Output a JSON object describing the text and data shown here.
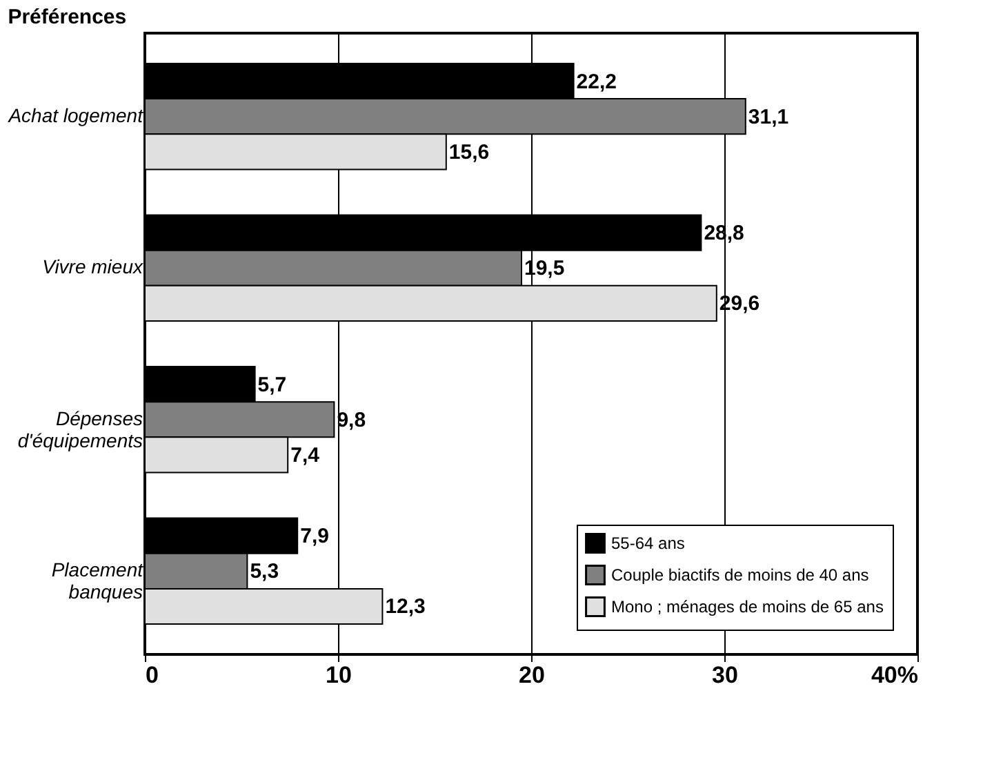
{
  "chart_data": {
    "type": "bar",
    "orientation": "horizontal",
    "title": "Préférences",
    "categories": [
      "Achat logement",
      "Vivre mieux",
      "Dépenses d'équipements",
      "Placement banques"
    ],
    "series": [
      {
        "name": "55-64 ans",
        "color": "#000000",
        "values": [
          22.2,
          28.8,
          5.7,
          7.9
        ],
        "value_labels": [
          "22,2",
          "28,8",
          "5,7",
          "7,9"
        ]
      },
      {
        "name": "Couple biactifs de moins de 40 ans",
        "color": "#808080",
        "values": [
          31.1,
          19.5,
          9.8,
          5.3
        ],
        "value_labels": [
          "31,1",
          "19,5",
          "9,8",
          "5,3"
        ]
      },
      {
        "name": "Mono ; ménages de moins de 65 ans",
        "color": "#e0e0e0",
        "values": [
          15.6,
          29.6,
          7.4,
          12.3
        ],
        "value_labels": [
          "15,6",
          "29,6",
          "7,4",
          "12,3"
        ]
      }
    ],
    "xlim": [
      0,
      40
    ],
    "xticks": [
      0,
      10,
      20,
      30,
      {
        "value": 40,
        "label": "40%"
      }
    ],
    "grid": "x",
    "legend": "bottom right"
  }
}
